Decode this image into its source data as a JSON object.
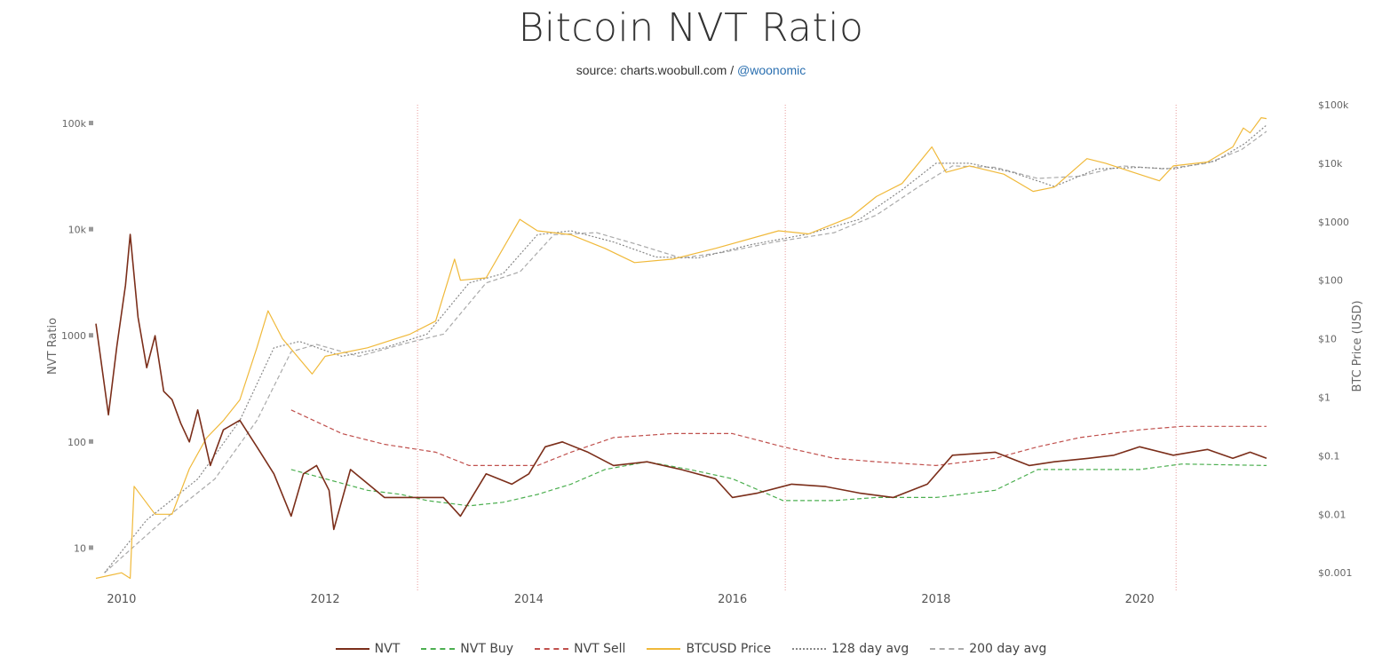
{
  "title": "Bitcoin NVT Ratio",
  "subtitle": {
    "source_prefix": "source: charts.woobull.com / ",
    "source_handle": "@woonomic"
  },
  "chart_data": {
    "type": "line",
    "title": "Bitcoin NVT Ratio",
    "ylabel_left": "NVT Ratio",
    "ylabel_right": "BTC Price (USD)",
    "left_axis": {
      "scale": "log",
      "range": [
        4,
        150000
      ],
      "ticks": [
        "10",
        "100",
        "1000",
        "10k",
        "100k"
      ]
    },
    "right_axis": {
      "scale": "log",
      "range": [
        0.0005,
        100000
      ],
      "ticks": [
        "$0.001",
        "$0.01",
        "$0.1",
        "$1",
        "$10",
        "$100",
        "$1000",
        "$10k",
        "$100k"
      ]
    },
    "x_axis": {
      "range": [
        "2009-10",
        "2021-04"
      ],
      "ticks": [
        "2010",
        "2012",
        "2014",
        "2016",
        "2018",
        "2020"
      ]
    },
    "halvings": [
      "2012-11-28",
      "2016-07-09",
      "2020-05-11"
    ],
    "grid": false,
    "legend_position": "bottom",
    "colors": {
      "nvt": "#7b2e1a",
      "nvt_buy": "#4caf50",
      "nvt_sell": "#c0504d",
      "price": "#f0b93a",
      "avg128": "#888888",
      "avg200": "#aaaaaa",
      "halving": "#e08080"
    },
    "series": [
      {
        "name": "NVT",
        "axis": "left",
        "color": "#7b2e1a",
        "style": "solid",
        "points": [
          [
            "2009-10-01",
            1300
          ],
          [
            "2009-11-15",
            180
          ],
          [
            "2009-12-15",
            800
          ],
          [
            "2010-01-15",
            3000
          ],
          [
            "2010-02-01",
            9000
          ],
          [
            "2010-03-01",
            1500
          ],
          [
            "2010-04-01",
            500
          ],
          [
            "2010-05-01",
            1000
          ],
          [
            "2010-06-01",
            300
          ],
          [
            "2010-07-01",
            250
          ],
          [
            "2010-08-01",
            150
          ],
          [
            "2010-09-01",
            100
          ],
          [
            "2010-10-01",
            200
          ],
          [
            "2010-11-15",
            60
          ],
          [
            "2011-01-01",
            130
          ],
          [
            "2011-03-01",
            160
          ],
          [
            "2011-05-01",
            90
          ],
          [
            "2011-07-01",
            50
          ],
          [
            "2011-09-01",
            20
          ],
          [
            "2011-10-15",
            50
          ],
          [
            "2011-12-01",
            60
          ],
          [
            "2012-01-15",
            35
          ],
          [
            "2012-02-01",
            15
          ],
          [
            "2012-04-01",
            55
          ],
          [
            "2012-08-01",
            30
          ],
          [
            "2012-12-01",
            30
          ],
          [
            "2013-03-01",
            30
          ],
          [
            "2013-05-01",
            20
          ],
          [
            "2013-08-01",
            50
          ],
          [
            "2013-11-01",
            40
          ],
          [
            "2014-01-01",
            50
          ],
          [
            "2014-03-01",
            90
          ],
          [
            "2014-05-01",
            100
          ],
          [
            "2014-08-01",
            80
          ],
          [
            "2014-11-01",
            60
          ],
          [
            "2015-03-01",
            65
          ],
          [
            "2015-07-01",
            55
          ],
          [
            "2015-11-01",
            45
          ],
          [
            "2016-01-01",
            30
          ],
          [
            "2016-04-01",
            33
          ],
          [
            "2016-08-01",
            40
          ],
          [
            "2016-12-01",
            38
          ],
          [
            "2017-04-01",
            33
          ],
          [
            "2017-08-01",
            30
          ],
          [
            "2017-12-01",
            40
          ],
          [
            "2018-03-01",
            75
          ],
          [
            "2018-08-01",
            80
          ],
          [
            "2018-12-01",
            60
          ],
          [
            "2019-03-01",
            65
          ],
          [
            "2019-07-01",
            70
          ],
          [
            "2019-10-01",
            75
          ],
          [
            "2020-01-01",
            90
          ],
          [
            "2020-05-01",
            75
          ],
          [
            "2020-09-01",
            85
          ],
          [
            "2020-12-01",
            70
          ],
          [
            "2021-02-01",
            80
          ],
          [
            "2021-04-01",
            70
          ]
        ]
      },
      {
        "name": "NVT Buy",
        "axis": "left",
        "color": "#4caf50",
        "style": "dashed",
        "points": [
          [
            "2011-09-01",
            55
          ],
          [
            "2012-01-01",
            45
          ],
          [
            "2012-06-01",
            35
          ],
          [
            "2012-10-01",
            32
          ],
          [
            "2013-01-01",
            28
          ],
          [
            "2013-06-01",
            25
          ],
          [
            "2013-10-01",
            27
          ],
          [
            "2014-02-01",
            32
          ],
          [
            "2014-06-01",
            40
          ],
          [
            "2014-10-01",
            55
          ],
          [
            "2015-03-01",
            65
          ],
          [
            "2015-08-01",
            55
          ],
          [
            "2016-01-01",
            45
          ],
          [
            "2016-07-01",
            28
          ],
          [
            "2017-01-01",
            28
          ],
          [
            "2017-06-01",
            30
          ],
          [
            "2018-01-01",
            30
          ],
          [
            "2018-08-01",
            35
          ],
          [
            "2019-01-01",
            55
          ],
          [
            "2019-06-01",
            55
          ],
          [
            "2020-01-01",
            55
          ],
          [
            "2020-06-01",
            62
          ],
          [
            "2021-04-01",
            60
          ]
        ]
      },
      {
        "name": "NVT Sell",
        "axis": "left",
        "color": "#c0504d",
        "style": "dashed",
        "points": [
          [
            "2011-09-01",
            200
          ],
          [
            "2012-03-01",
            120
          ],
          [
            "2012-08-01",
            95
          ],
          [
            "2013-02-01",
            80
          ],
          [
            "2013-06-01",
            60
          ],
          [
            "2014-02-01",
            60
          ],
          [
            "2014-06-01",
            80
          ],
          [
            "2014-11-01",
            110
          ],
          [
            "2015-06-01",
            120
          ],
          [
            "2016-01-01",
            120
          ],
          [
            "2016-07-01",
            90
          ],
          [
            "2017-01-01",
            70
          ],
          [
            "2017-06-01",
            65
          ],
          [
            "2018-01-01",
            60
          ],
          [
            "2018-08-01",
            70
          ],
          [
            "2019-01-01",
            90
          ],
          [
            "2019-06-01",
            110
          ],
          [
            "2020-01-01",
            130
          ],
          [
            "2020-06-01",
            140
          ],
          [
            "2021-04-01",
            140
          ]
        ]
      },
      {
        "name": "BTCUSD Price",
        "axis": "right",
        "color": "#f0b93a",
        "style": "solid",
        "points": [
          [
            "2009-10-01",
            0.0008
          ],
          [
            "2010-01-01",
            0.001
          ],
          [
            "2010-02-01",
            0.0008
          ],
          [
            "2010-02-15",
            0.03
          ],
          [
            "2010-05-01",
            0.01
          ],
          [
            "2010-07-01",
            0.01
          ],
          [
            "2010-09-01",
            0.06
          ],
          [
            "2010-11-01",
            0.2
          ],
          [
            "2011-01-01",
            0.4
          ],
          [
            "2011-03-01",
            0.9
          ],
          [
            "2011-05-01",
            7
          ],
          [
            "2011-06-10",
            30
          ],
          [
            "2011-08-01",
            10
          ],
          [
            "2011-11-15",
            2.5
          ],
          [
            "2012-01-01",
            5
          ],
          [
            "2012-06-01",
            7
          ],
          [
            "2012-11-01",
            12
          ],
          [
            "2013-02-01",
            20
          ],
          [
            "2013-04-10",
            230
          ],
          [
            "2013-05-01",
            100
          ],
          [
            "2013-08-01",
            110
          ],
          [
            "2013-11-30",
            1100
          ],
          [
            "2014-02-01",
            700
          ],
          [
            "2014-06-01",
            600
          ],
          [
            "2014-10-01",
            350
          ],
          [
            "2015-01-15",
            200
          ],
          [
            "2015-06-01",
            230
          ],
          [
            "2015-11-01",
            350
          ],
          [
            "2016-06-15",
            700
          ],
          [
            "2016-10-01",
            620
          ],
          [
            "2017-03-01",
            1200
          ],
          [
            "2017-06-01",
            2700
          ],
          [
            "2017-09-01",
            4500
          ],
          [
            "2017-12-17",
            19000
          ],
          [
            "2018-02-06",
            7000
          ],
          [
            "2018-05-01",
            9000
          ],
          [
            "2018-09-01",
            6500
          ],
          [
            "2018-12-15",
            3300
          ],
          [
            "2019-03-01",
            3900
          ],
          [
            "2019-06-26",
            12000
          ],
          [
            "2019-09-01",
            10000
          ],
          [
            "2019-12-01",
            7200
          ],
          [
            "2020-03-12",
            5000
          ],
          [
            "2020-05-01",
            9000
          ],
          [
            "2020-09-01",
            10500
          ],
          [
            "2020-12-01",
            19000
          ],
          [
            "2021-01-08",
            40000
          ],
          [
            "2021-02-01",
            33000
          ],
          [
            "2021-03-13",
            60000
          ],
          [
            "2021-04-01",
            58000
          ]
        ]
      },
      {
        "name": "128 day avg",
        "axis": "right",
        "color": "#888888",
        "style": "dotted",
        "points": [
          [
            "2009-11-01",
            0.001
          ],
          [
            "2010-04-01",
            0.008
          ],
          [
            "2010-10-01",
            0.04
          ],
          [
            "2011-03-01",
            0.4
          ],
          [
            "2011-07-01",
            7
          ],
          [
            "2011-10-01",
            9
          ],
          [
            "2012-03-01",
            5
          ],
          [
            "2012-08-01",
            7
          ],
          [
            "2013-01-01",
            12
          ],
          [
            "2013-06-01",
            90
          ],
          [
            "2013-10-01",
            130
          ],
          [
            "2014-02-01",
            600
          ],
          [
            "2014-06-01",
            700
          ],
          [
            "2014-11-01",
            450
          ],
          [
            "2015-04-01",
            250
          ],
          [
            "2015-09-01",
            240
          ],
          [
            "2016-03-01",
            400
          ],
          [
            "2016-10-01",
            620
          ],
          [
            "2017-04-01",
            1100
          ],
          [
            "2017-09-01",
            3500
          ],
          [
            "2018-01-01",
            10000
          ],
          [
            "2018-05-01",
            10000
          ],
          [
            "2018-10-01",
            7000
          ],
          [
            "2019-03-01",
            4000
          ],
          [
            "2019-08-01",
            8000
          ],
          [
            "2020-01-01",
            8500
          ],
          [
            "2020-05-01",
            8000
          ],
          [
            "2020-10-01",
            11000
          ],
          [
            "2021-01-15",
            22000
          ],
          [
            "2021-04-01",
            45000
          ]
        ]
      },
      {
        "name": "200 day avg",
        "axis": "right",
        "color": "#aaaaaa",
        "style": "dashed",
        "points": [
          [
            "2009-11-01",
            0.001
          ],
          [
            "2010-06-01",
            0.008
          ],
          [
            "2010-12-01",
            0.04
          ],
          [
            "2011-05-01",
            0.4
          ],
          [
            "2011-09-01",
            6
          ],
          [
            "2011-12-01",
            8
          ],
          [
            "2012-05-01",
            5
          ],
          [
            "2012-10-01",
            8
          ],
          [
            "2013-03-01",
            12
          ],
          [
            "2013-08-01",
            90
          ],
          [
            "2013-12-01",
            140
          ],
          [
            "2014-04-01",
            600
          ],
          [
            "2014-09-01",
            650
          ],
          [
            "2015-02-01",
            400
          ],
          [
            "2015-07-01",
            240
          ],
          [
            "2015-12-01",
            300
          ],
          [
            "2016-06-01",
            450
          ],
          [
            "2017-01-01",
            650
          ],
          [
            "2017-06-01",
            1300
          ],
          [
            "2017-11-01",
            4000
          ],
          [
            "2018-03-01",
            9000
          ],
          [
            "2018-08-01",
            8500
          ],
          [
            "2019-01-01",
            5500
          ],
          [
            "2019-06-01",
            6000
          ],
          [
            "2019-11-01",
            9000
          ],
          [
            "2020-04-01",
            8000
          ],
          [
            "2020-09-01",
            10000
          ],
          [
            "2021-01-01",
            17000
          ],
          [
            "2021-04-01",
            35000
          ]
        ]
      }
    ]
  },
  "legend": [
    {
      "label": "NVT",
      "color": "#7b2e1a",
      "style": "solid"
    },
    {
      "label": "NVT Buy",
      "color": "#4caf50",
      "style": "dashed"
    },
    {
      "label": "NVT Sell",
      "color": "#c0504d",
      "style": "dashed"
    },
    {
      "label": "BTCUSD Price",
      "color": "#f0b93a",
      "style": "solid"
    },
    {
      "label": "128 day avg",
      "color": "#888888",
      "style": "dotted"
    },
    {
      "label": "200 day avg",
      "color": "#aaaaaa",
      "style": "dashed"
    }
  ]
}
